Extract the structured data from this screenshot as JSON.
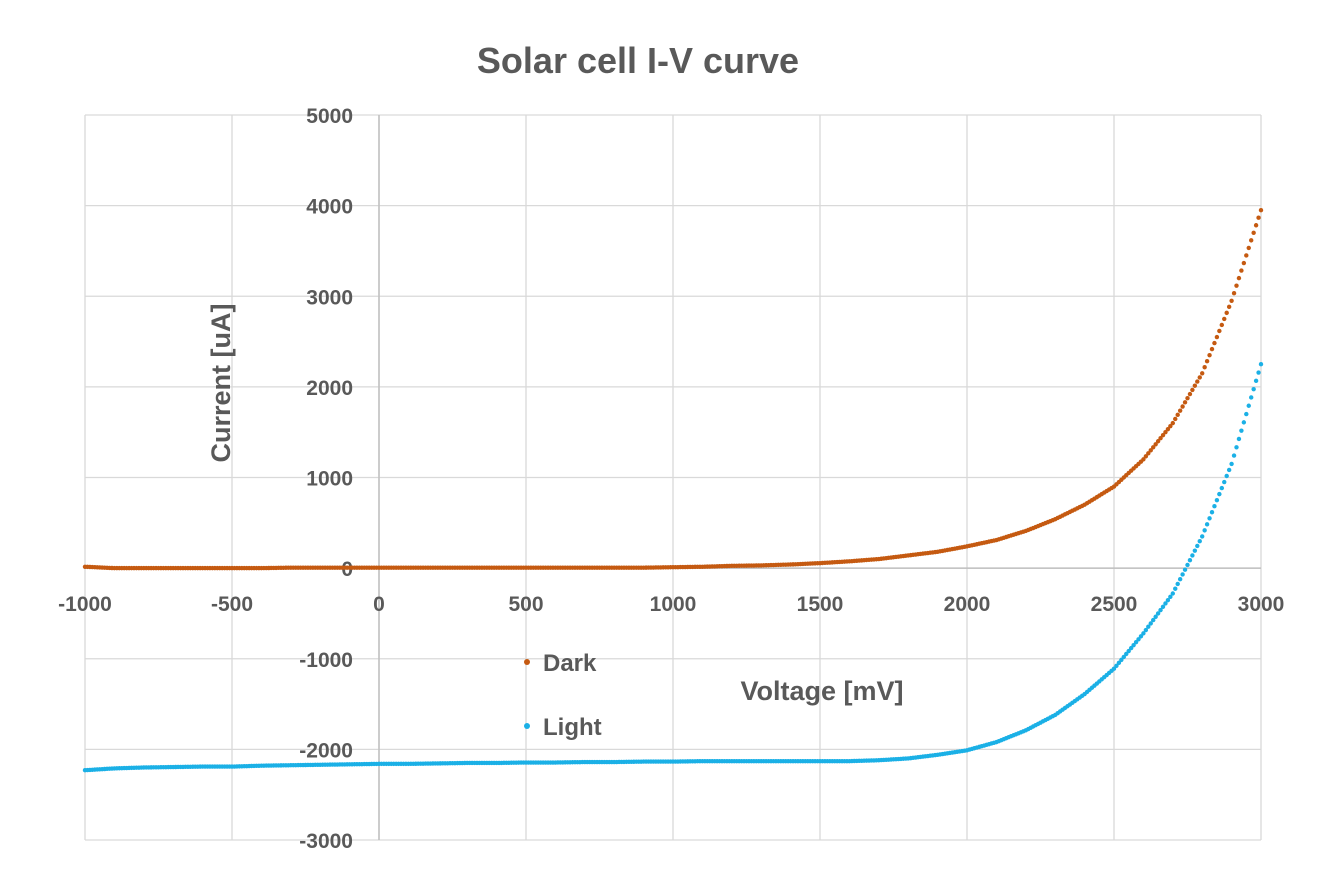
{
  "chart_data": {
    "type": "scatter",
    "title": "Solar cell I-V curve",
    "xlabel": "Voltage [mV]",
    "ylabel": "Current [uA]",
    "xlim": [
      -1000,
      3000
    ],
    "ylim": [
      -3000,
      5000
    ],
    "x_ticks": [
      -1000,
      -500,
      0,
      500,
      1000,
      1500,
      2000,
      2500,
      3000
    ],
    "y_ticks": [
      -3000,
      -2000,
      -1000,
      0,
      1000,
      2000,
      3000,
      4000,
      5000
    ],
    "grid": true,
    "legend_position": "center-left",
    "series": [
      {
        "name": "Dark",
        "color": "#c55a11",
        "points": [
          [
            -1000,
            15
          ],
          [
            -900,
            0
          ],
          [
            -800,
            0
          ],
          [
            -700,
            0
          ],
          [
            -600,
            0
          ],
          [
            -500,
            0
          ],
          [
            -400,
            0
          ],
          [
            -300,
            5
          ],
          [
            -200,
            5
          ],
          [
            -100,
            5
          ],
          [
            0,
            5
          ],
          [
            100,
            5
          ],
          [
            200,
            5
          ],
          [
            300,
            5
          ],
          [
            400,
            5
          ],
          [
            500,
            5
          ],
          [
            600,
            5
          ],
          [
            700,
            5
          ],
          [
            800,
            5
          ],
          [
            900,
            5
          ],
          [
            1000,
            10
          ],
          [
            1100,
            15
          ],
          [
            1200,
            25
          ],
          [
            1300,
            30
          ],
          [
            1400,
            40
          ],
          [
            1500,
            55
          ],
          [
            1600,
            75
          ],
          [
            1700,
            100
          ],
          [
            1800,
            140
          ],
          [
            1900,
            180
          ],
          [
            2000,
            240
          ],
          [
            2100,
            310
          ],
          [
            2200,
            410
          ],
          [
            2300,
            540
          ],
          [
            2400,
            700
          ],
          [
            2500,
            900
          ],
          [
            2600,
            1200
          ],
          [
            2700,
            1600
          ],
          [
            2800,
            2150
          ],
          [
            2900,
            2950
          ],
          [
            3000,
            3950
          ]
        ]
      },
      {
        "name": "Light",
        "color": "#1bb0e6",
        "points": [
          [
            -1000,
            -2230
          ],
          [
            -900,
            -2210
          ],
          [
            -800,
            -2200
          ],
          [
            -700,
            -2195
          ],
          [
            -600,
            -2190
          ],
          [
            -500,
            -2190
          ],
          [
            -400,
            -2180
          ],
          [
            -300,
            -2175
          ],
          [
            -200,
            -2170
          ],
          [
            -100,
            -2165
          ],
          [
            0,
            -2160
          ],
          [
            100,
            -2160
          ],
          [
            200,
            -2155
          ],
          [
            300,
            -2150
          ],
          [
            400,
            -2150
          ],
          [
            500,
            -2145
          ],
          [
            600,
            -2145
          ],
          [
            700,
            -2140
          ],
          [
            800,
            -2140
          ],
          [
            900,
            -2135
          ],
          [
            1000,
            -2135
          ],
          [
            1100,
            -2130
          ],
          [
            1200,
            -2130
          ],
          [
            1300,
            -2130
          ],
          [
            1400,
            -2130
          ],
          [
            1500,
            -2130
          ],
          [
            1600,
            -2130
          ],
          [
            1700,
            -2120
          ],
          [
            1800,
            -2100
          ],
          [
            1900,
            -2060
          ],
          [
            2000,
            -2010
          ],
          [
            2100,
            -1920
          ],
          [
            2200,
            -1790
          ],
          [
            2300,
            -1620
          ],
          [
            2400,
            -1390
          ],
          [
            2500,
            -1110
          ],
          [
            2600,
            -720
          ],
          [
            2700,
            -280
          ],
          [
            2800,
            350
          ],
          [
            2900,
            1150
          ],
          [
            3000,
            2250
          ]
        ]
      }
    ]
  }
}
